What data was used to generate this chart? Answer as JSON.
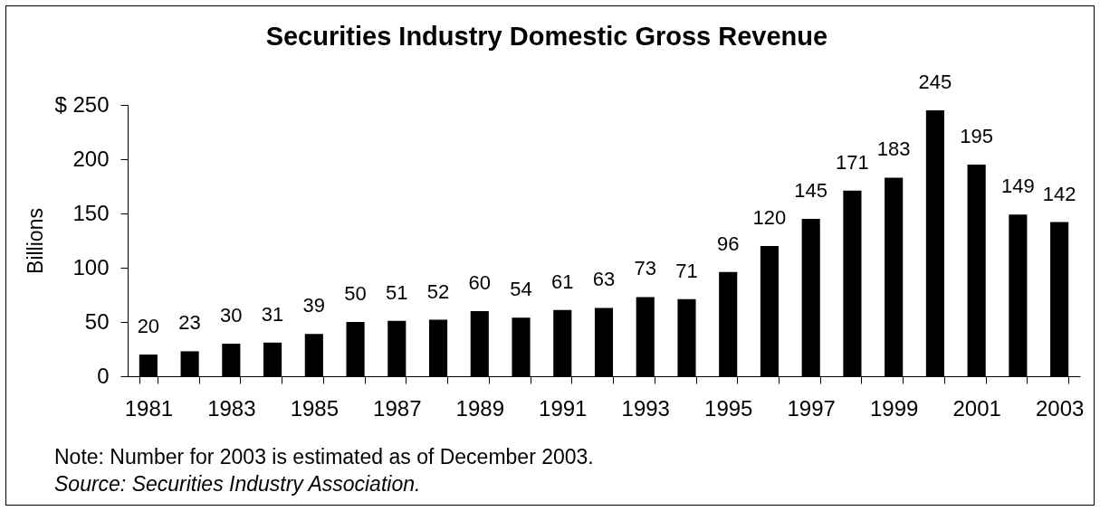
{
  "chart_data": {
    "type": "bar",
    "title": "Securities Industry Domestic Gross Revenue",
    "ylabel": "Billions",
    "categories": [
      "1981",
      null,
      "1983",
      null,
      "1985",
      null,
      "1987",
      null,
      "1989",
      null,
      "1991",
      null,
      "1993",
      null,
      "1995",
      null,
      "1997",
      null,
      "1999",
      null,
      "2001",
      null,
      "2003"
    ],
    "values": [
      20,
      23,
      30,
      31,
      39,
      50,
      51,
      52,
      60,
      54,
      61,
      63,
      73,
      71,
      96,
      120,
      145,
      171,
      183,
      245,
      195,
      149,
      142
    ],
    "color": "#000000",
    "ylim": [
      0,
      250
    ],
    "yticks": [
      0,
      50,
      100,
      150,
      200,
      {
        "value": 250,
        "label": "$ 250"
      }
    ],
    "data_labels": true,
    "annotations": [
      "Note: Number for 2003 is estimated as of December 2003.",
      "Source: Securities Industry Association."
    ]
  }
}
